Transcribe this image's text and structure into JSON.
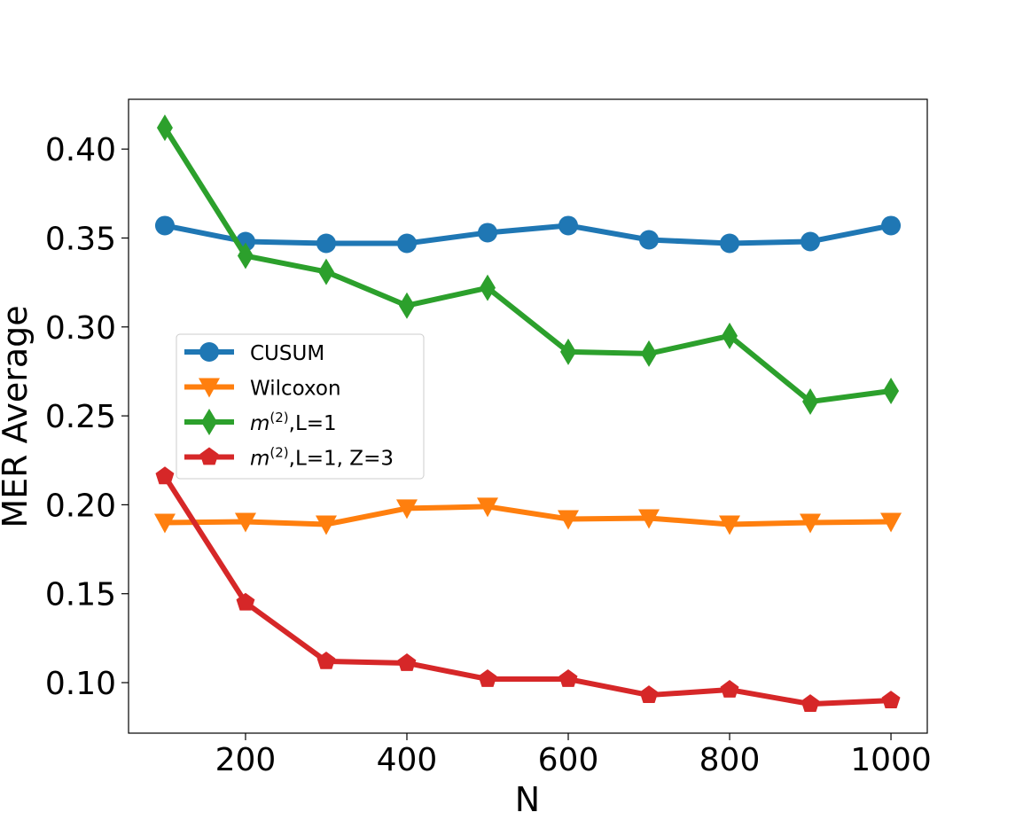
{
  "chart_data": {
    "type": "line",
    "title": "",
    "xlabel": "N",
    "ylabel": "MER Average",
    "xlim": [
      55,
      1045
    ],
    "ylim": [
      0.0716,
      0.428
    ],
    "xticks": [
      200,
      400,
      600,
      800,
      1000
    ],
    "xtick_labels": [
      "200",
      "400",
      "600",
      "800",
      "1000"
    ],
    "yticks": [
      0.1,
      0.15,
      0.2,
      0.25,
      0.3,
      0.35,
      0.4
    ],
    "ytick_labels": [
      "0.10",
      "0.15",
      "0.20",
      "0.25",
      "0.30",
      "0.35",
      "0.40"
    ],
    "grid": false,
    "legend_position": "center-left",
    "x": [
      100,
      200,
      300,
      400,
      500,
      600,
      700,
      800,
      900,
      1000
    ],
    "series": [
      {
        "name": "CUSUM",
        "name_main": "CUSUM",
        "name_sup": "",
        "name_rest": "",
        "color": "#1f77b4",
        "marker": "circle",
        "values": [
          0.357,
          0.348,
          0.347,
          0.347,
          0.353,
          0.357,
          0.349,
          0.347,
          0.348,
          0.357
        ]
      },
      {
        "name": "Wilcoxon",
        "name_main": "Wilcoxon",
        "name_sup": "",
        "name_rest": "",
        "color": "#ff7f0e",
        "marker": "triangle-down",
        "values": [
          0.19,
          0.1905,
          0.189,
          0.198,
          0.199,
          0.192,
          0.1925,
          0.189,
          0.19,
          0.1905
        ]
      },
      {
        "name": "m^(2),L=1",
        "name_main": "m",
        "name_sup": "(2)",
        "name_rest": ",L=1",
        "color": "#2ca02c",
        "marker": "thin-diamond",
        "values": [
          0.412,
          0.34,
          0.331,
          0.312,
          0.322,
          0.286,
          0.285,
          0.295,
          0.258,
          0.264
        ]
      },
      {
        "name": "m^(2),L=1, Z=3",
        "name_main": "m",
        "name_sup": "(2)",
        "name_rest": ",L=1, Z=3",
        "color": "#d62728",
        "marker": "pentagon",
        "values": [
          0.216,
          0.145,
          0.112,
          0.111,
          0.102,
          0.102,
          0.093,
          0.096,
          0.088,
          0.09
        ]
      }
    ]
  }
}
